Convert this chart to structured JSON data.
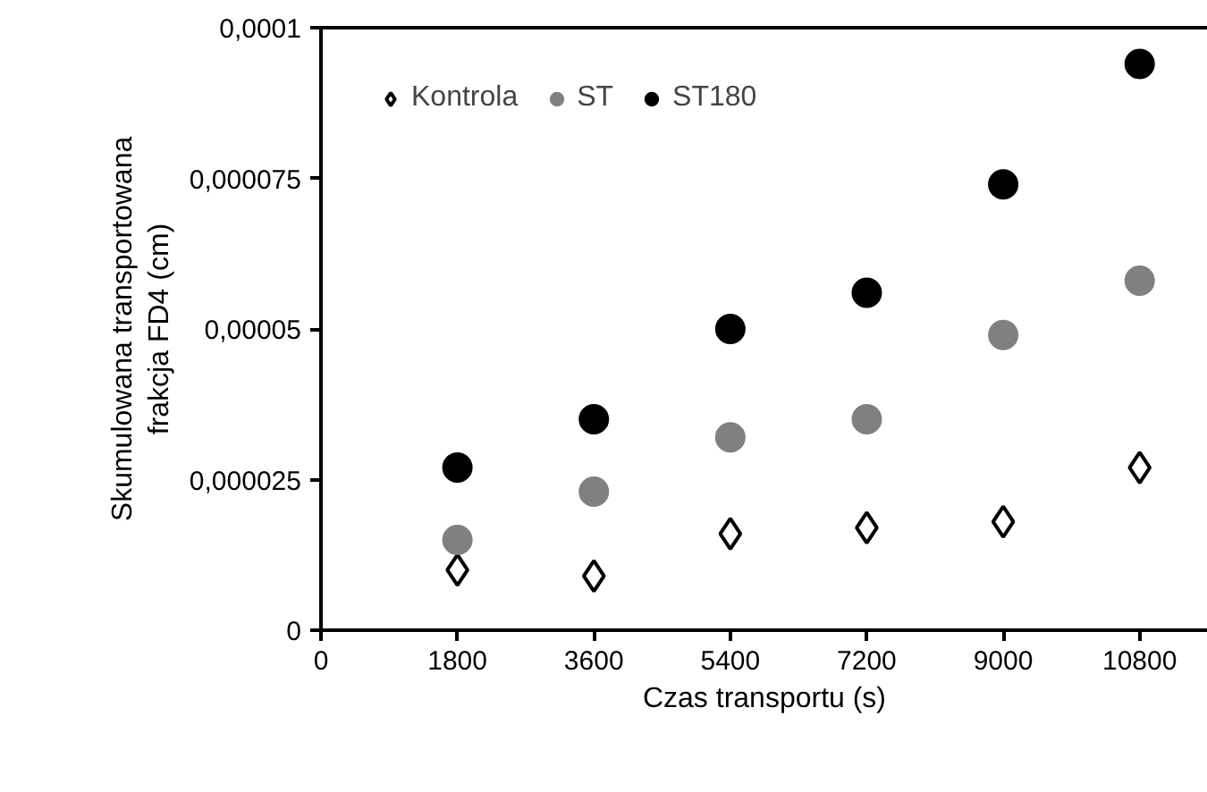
{
  "chart_data": {
    "type": "scatter",
    "xlabel": "Czas transportu (s)",
    "ylabel": "Skumulowana transportowana\nfrakcja FD4 (cm)",
    "x": [
      1800,
      3600,
      5400,
      7200,
      9000,
      10800
    ],
    "series": [
      {
        "name": "Kontrola",
        "color": "#000000",
        "marker": "diamond",
        "values": [
          1e-05,
          9e-06,
          1.6e-05,
          1.7e-05,
          1.8e-05,
          2.7e-05
        ]
      },
      {
        "name": "ST",
        "color": "#808080",
        "marker": "circle",
        "values": [
          1.5e-05,
          2.3e-05,
          3.2e-05,
          3.5e-05,
          4.9e-05,
          5.8e-05
        ]
      },
      {
        "name": "ST180",
        "color": "#000000",
        "marker": "circle",
        "values": [
          2.7e-05,
          3.5e-05,
          5e-05,
          5.6e-05,
          7.4e-05,
          9.4e-05
        ]
      }
    ],
    "xlim": [
      0,
      11700
    ],
    "xticks": [
      0,
      1800,
      3600,
      5400,
      7200,
      9000,
      10800
    ],
    "ylim": [
      0,
      0.0001
    ],
    "yticks": [
      0,
      {
        "value": 2.5e-05,
        "label": "0,000025"
      },
      {
        "value": 5e-05,
        "label": "0,00005"
      },
      {
        "value": 7.5e-05,
        "label": "0,000075"
      },
      {
        "value": 0.0001,
        "label": "0,0001"
      }
    ],
    "grid": false,
    "legend": "top left"
  }
}
